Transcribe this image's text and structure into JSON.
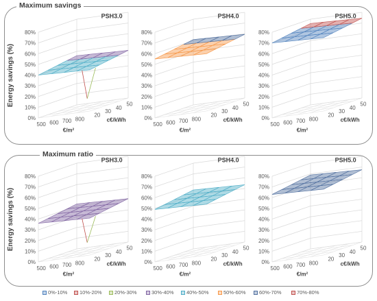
{
  "panels": [
    {
      "title": "Maximum savings"
    },
    {
      "title": "Maximum ratio"
    }
  ],
  "legend": [
    {
      "label": "0%-10%",
      "color": "#4f81bd"
    },
    {
      "label": "10%-20%",
      "color": "#c0504d"
    },
    {
      "label": "20%-30%",
      "color": "#9bbb59"
    },
    {
      "label": "30%-40%",
      "color": "#8064a2"
    },
    {
      "label": "40%-50%",
      "color": "#4bacc6"
    },
    {
      "label": "50%-60%",
      "color": "#f79646"
    },
    {
      "label": "60%-70%",
      "color": "#4f6e9e"
    },
    {
      "label": "70%-80%",
      "color": "#c0504d"
    }
  ],
  "chart_data": [
    {
      "type": "surface3d",
      "panel": "Maximum savings",
      "title": "PSH3.0",
      "ylabel": "Energy savings (%)",
      "zlim": [
        0,
        80
      ],
      "zticks": [
        "0%",
        "10%",
        "20%",
        "30%",
        "40%",
        "50%",
        "60%",
        "70%",
        "80%"
      ],
      "xaxis": {
        "label": "€/m²",
        "ticks": [
          "500",
          "600",
          "700",
          "800"
        ]
      },
      "yaxis": {
        "label": "c€/kWh",
        "ticks": [
          "20",
          "30",
          "40",
          "50"
        ]
      },
      "surface_level": 40,
      "dip": 12,
      "colors": [
        "#4bacc6",
        "#8064a2"
      ]
    },
    {
      "type": "surface3d",
      "panel": "Maximum savings",
      "title": "PSH4.0",
      "ylabel": "",
      "zlim": [
        0,
        80
      ],
      "zticks": [
        "0%",
        "10%",
        "20%",
        "30%",
        "40%",
        "50%",
        "60%",
        "70%",
        "80%"
      ],
      "xaxis": {
        "label": "€/m²",
        "ticks": [
          "500",
          "600",
          "700",
          "800"
        ]
      },
      "yaxis": {
        "label": "c€/kWh",
        "ticks": [
          "20",
          "30",
          "40",
          "50"
        ]
      },
      "surface_level": 55,
      "dip": null,
      "colors": [
        "#f79646",
        "#4f6e9e"
      ]
    },
    {
      "type": "surface3d",
      "panel": "Maximum savings",
      "title": "PSH5.0",
      "ylabel": "",
      "zlim": [
        0,
        80
      ],
      "zticks": [
        "0%",
        "10%",
        "20%",
        "30%",
        "40%",
        "50%",
        "60%",
        "70%",
        "80%"
      ],
      "xaxis": {
        "label": "€/m²",
        "ticks": [
          "500",
          "600",
          "700",
          "800"
        ]
      },
      "yaxis": {
        "label": "c€/kWh",
        "ticks": [
          "20",
          "30",
          "40",
          "50"
        ]
      },
      "surface_level": 70,
      "dip": null,
      "colors": [
        "#4f81bd",
        "#c0504d"
      ]
    },
    {
      "type": "surface3d",
      "panel": "Maximum ratio",
      "title": "PSH3.0",
      "ylabel": "Energy savings (%)",
      "zlim": [
        0,
        80
      ],
      "zticks": [
        "0%",
        "10%",
        "20%",
        "30%",
        "40%",
        "50%",
        "60%",
        "70%",
        "80%"
      ],
      "xaxis": {
        "label": "€/m²",
        "ticks": [
          "500",
          "600",
          "700",
          "800"
        ]
      },
      "yaxis": {
        "label": "c€/kWh",
        "ticks": [
          "20",
          "30",
          "40",
          "50"
        ]
      },
      "surface_level": 36,
      "dip": 12,
      "colors": [
        "#8064a2",
        "#8064a2"
      ]
    },
    {
      "type": "surface3d",
      "panel": "Maximum ratio",
      "title": "PSH4.0",
      "ylabel": "",
      "zlim": [
        0,
        80
      ],
      "zticks": [
        "0%",
        "10%",
        "20%",
        "30%",
        "40%",
        "50%",
        "60%",
        "70%",
        "80%"
      ],
      "xaxis": {
        "label": "€/m²",
        "ticks": [
          "500",
          "600",
          "700",
          "800"
        ]
      },
      "yaxis": {
        "label": "c€/kWh",
        "ticks": [
          "20",
          "30",
          "40",
          "50"
        ]
      },
      "surface_level": 49,
      "dip": null,
      "colors": [
        "#4bacc6",
        "#4bacc6"
      ]
    },
    {
      "type": "surface3d",
      "panel": "Maximum ratio",
      "title": "PSH5.0",
      "ylabel": "",
      "zlim": [
        0,
        80
      ],
      "zticks": [
        "0%",
        "10%",
        "20%",
        "30%",
        "40%",
        "50%",
        "60%",
        "70%",
        "80%"
      ],
      "xaxis": {
        "label": "€/m²",
        "ticks": [
          "500",
          "600",
          "700",
          "800"
        ]
      },
      "yaxis": {
        "label": "c€/kWh",
        "ticks": [
          "20",
          "30",
          "40",
          "50"
        ]
      },
      "surface_level": 63,
      "dip": null,
      "colors": [
        "#4f6e9e",
        "#4f6e9e"
      ]
    }
  ]
}
